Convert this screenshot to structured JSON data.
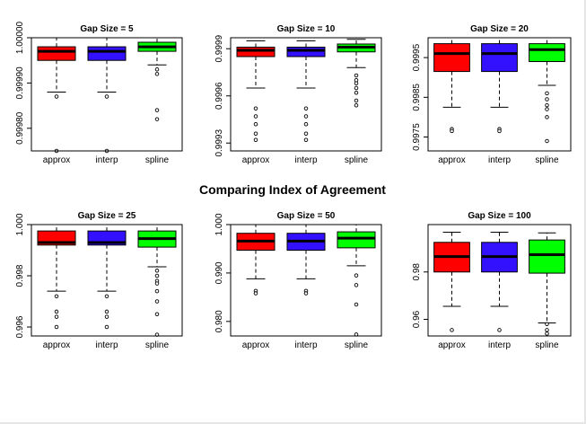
{
  "figure": {
    "title": "Comparing Index of Agreement"
  },
  "colors": {
    "approx": "#ff0000",
    "interp": "#3311ff",
    "spline": "#00ff00"
  },
  "chart_data": [
    {
      "type": "boxplot",
      "title": "Gap Size = 5",
      "categories": [
        "approx",
        "interp",
        "spline"
      ],
      "ylim": [
        0.99975,
        1.0
      ],
      "yticks": [
        0.9998,
        0.9999,
        1.0
      ],
      "ytick_labels": [
        "0.99980",
        "0.99990",
        "1.00000"
      ],
      "boxes": [
        {
          "name": "approx",
          "q1": 0.99995,
          "median": 0.99997,
          "q3": 0.99998,
          "whisker_low": 0.99988,
          "whisker_high": 1.0,
          "outliers": [
            0.99987,
            0.99975
          ]
        },
        {
          "name": "interp",
          "q1": 0.99995,
          "median": 0.99997,
          "q3": 0.99998,
          "whisker_low": 0.99988,
          "whisker_high": 1.0,
          "outliers": [
            0.99987,
            0.99975
          ]
        },
        {
          "name": "spline",
          "q1": 0.99997,
          "median": 0.99998,
          "q3": 0.99999,
          "whisker_low": 0.99994,
          "whisker_high": 1.0,
          "outliers": [
            0.99993,
            0.99992,
            0.99984,
            0.99982
          ]
        }
      ]
    },
    {
      "type": "boxplot",
      "title": "Gap Size = 10",
      "categories": [
        "approx",
        "interp",
        "spline"
      ],
      "ylim": [
        0.99925,
        0.99997
      ],
      "yticks": [
        0.9993,
        0.9996,
        0.9999
      ],
      "ytick_labels": [
        "0.9993",
        "0.9996",
        "0.9999"
      ],
      "boxes": [
        {
          "name": "approx",
          "q1": 0.99985,
          "median": 0.99989,
          "q3": 0.99991,
          "whisker_low": 0.99965,
          "whisker_high": 0.99995,
          "outliers": [
            0.99952,
            0.99947,
            0.99942,
            0.99936,
            0.99932
          ]
        },
        {
          "name": "interp",
          "q1": 0.99985,
          "median": 0.99989,
          "q3": 0.99991,
          "whisker_low": 0.99965,
          "whisker_high": 0.99995,
          "outliers": [
            0.99952,
            0.99947,
            0.99942,
            0.99936,
            0.99932
          ]
        },
        {
          "name": "spline",
          "q1": 0.99988,
          "median": 0.99991,
          "q3": 0.99993,
          "whisker_low": 0.99978,
          "whisker_high": 0.99996,
          "outliers": [
            0.99973,
            0.9997,
            0.99968,
            0.99965,
            0.99962,
            0.99957,
            0.99954
          ]
        }
      ]
    },
    {
      "type": "boxplot",
      "title": "Gap Size = 20",
      "categories": [
        "approx",
        "interp",
        "spline"
      ],
      "ylim": [
        0.99715,
        1.0
      ],
      "yticks": [
        0.9975,
        0.9985,
        0.9995
      ],
      "ytick_labels": [
        "0.9975",
        "0.9985",
        "0.9995"
      ],
      "boxes": [
        {
          "name": "approx",
          "q1": 0.99915,
          "median": 0.9996,
          "q3": 0.99985,
          "whisker_low": 0.99825,
          "whisker_high": 1.0,
          "outliers": [
            0.9977,
            0.99765
          ]
        },
        {
          "name": "interp",
          "q1": 0.99915,
          "median": 0.9996,
          "q3": 0.99985,
          "whisker_low": 0.99825,
          "whisker_high": 1.0,
          "outliers": [
            0.9977,
            0.99765
          ]
        },
        {
          "name": "spline",
          "q1": 0.9994,
          "median": 0.9997,
          "q3": 0.99985,
          "whisker_low": 0.9988,
          "whisker_high": 1.0,
          "outliers": [
            0.9986,
            0.99845,
            0.9983,
            0.9982,
            0.998,
            0.9974
          ]
        }
      ]
    },
    {
      "type": "boxplot",
      "title": "Gap Size = 25",
      "categories": [
        "approx",
        "interp",
        "spline"
      ],
      "ylim": [
        0.99565,
        1.0
      ],
      "yticks": [
        0.996,
        0.998,
        1.0
      ],
      "ytick_labels": [
        "0.996",
        "0.998",
        "1.000"
      ],
      "boxes": [
        {
          "name": "approx",
          "q1": 0.9992,
          "median": 0.9993,
          "q3": 0.99975,
          "whisker_low": 0.9974,
          "whisker_high": 1.0,
          "outliers": [
            0.9972,
            0.9966,
            0.9964,
            0.996
          ]
        },
        {
          "name": "interp",
          "q1": 0.9992,
          "median": 0.9993,
          "q3": 0.99975,
          "whisker_low": 0.9974,
          "whisker_high": 1.0,
          "outliers": [
            0.9972,
            0.9966,
            0.9964,
            0.996
          ]
        },
        {
          "name": "spline",
          "q1": 0.99912,
          "median": 0.99945,
          "q3": 0.99975,
          "whisker_low": 0.99835,
          "whisker_high": 1.0,
          "outliers": [
            0.9982,
            0.998,
            0.9978,
            0.9977,
            0.9974,
            0.997,
            0.9965,
            0.9957
          ]
        }
      ]
    },
    {
      "type": "boxplot",
      "title": "Gap Size = 50",
      "categories": [
        "approx",
        "interp",
        "spline"
      ],
      "ylim": [
        0.977,
        1.0
      ],
      "yticks": [
        0.98,
        0.99,
        1.0
      ],
      "ytick_labels": [
        "0.980",
        "0.990",
        "1.000"
      ],
      "boxes": [
        {
          "name": "approx",
          "q1": 0.9947,
          "median": 0.9966,
          "q3": 0.9982,
          "whisker_low": 0.9888,
          "whisker_high": 1.0,
          "outliers": [
            0.9863,
            0.9858
          ]
        },
        {
          "name": "interp",
          "q1": 0.9947,
          "median": 0.9966,
          "q3": 0.9982,
          "whisker_low": 0.9888,
          "whisker_high": 1.0,
          "outliers": [
            0.9863,
            0.9858
          ]
        },
        {
          "name": "spline",
          "q1": 0.9952,
          "median": 0.9972,
          "q3": 0.9985,
          "whisker_low": 0.9915,
          "whisker_high": 1.0,
          "outliers": [
            0.9895,
            0.9875,
            0.9835,
            0.9773
          ]
        }
      ]
    },
    {
      "type": "boxplot",
      "title": "Gap Size = 100",
      "categories": [
        "approx",
        "interp",
        "spline"
      ],
      "ylim": [
        0.953,
        1.0
      ],
      "yticks": [
        0.96,
        0.98
      ],
      "ytick_labels": [
        "0.96",
        "0.98"
      ],
      "boxes": [
        {
          "name": "approx",
          "q1": 0.98,
          "median": 0.9865,
          "q3": 0.9925,
          "whisker_low": 0.9655,
          "whisker_high": 0.9968,
          "outliers": [
            0.9555
          ]
        },
        {
          "name": "interp",
          "q1": 0.98,
          "median": 0.9865,
          "q3": 0.9925,
          "whisker_low": 0.9655,
          "whisker_high": 0.9968,
          "outliers": [
            0.9555
          ]
        },
        {
          "name": "spline",
          "q1": 0.9795,
          "median": 0.9873,
          "q3": 0.9935,
          "whisker_low": 0.9585,
          "whisker_high": 0.9965,
          "outliers": [
            0.958,
            0.9555,
            0.954
          ]
        }
      ]
    }
  ]
}
